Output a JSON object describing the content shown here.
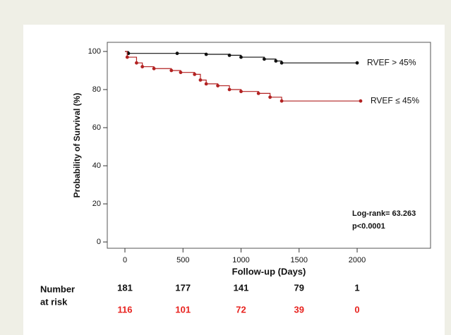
{
  "chart_data": {
    "type": "line",
    "step": true,
    "xlabel": "Follow-up (Days)",
    "ylabel": "Probability of Survival (%)",
    "xlim": [
      -152,
      2632
    ],
    "ylim": [
      -3.3,
      104.8
    ],
    "xticks": [
      0,
      500,
      1000,
      1500,
      2000
    ],
    "yticks": [
      0,
      20,
      40,
      60,
      80,
      100
    ],
    "series": [
      {
        "name": "RVEF > 45%",
        "color": "#111111",
        "x": [
          0,
          30,
          450,
          700,
          900,
          1000,
          1200,
          1300,
          1350,
          2000
        ],
        "values": [
          100,
          99,
          99,
          98.5,
          98,
          97,
          96,
          95,
          94,
          94
        ]
      },
      {
        "name": "RVEF ≤ 45%",
        "color": "#b22222",
        "x": [
          0,
          20,
          100,
          150,
          250,
          400,
          480,
          600,
          650,
          700,
          800,
          900,
          1000,
          1150,
          1250,
          1350,
          2030
        ],
        "values": [
          100,
          97,
          94,
          92,
          91,
          90,
          89,
          88,
          85,
          83,
          82,
          80,
          79,
          78,
          76,
          74,
          74
        ]
      }
    ],
    "annotations": [
      "Log-rank= 63.263",
      "p<0.0001"
    ],
    "risk_table": {
      "label": [
        "Number",
        "at risk"
      ],
      "rows": [
        {
          "color": "#111111",
          "values": [
            181,
            177,
            141,
            79,
            1
          ]
        },
        {
          "color": "#e8231f",
          "values": [
            116,
            101,
            72,
            39,
            0
          ]
        }
      ]
    }
  }
}
